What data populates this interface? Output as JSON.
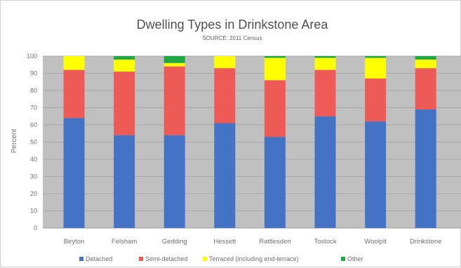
{
  "chart_data": {
    "type": "bar",
    "stacked": true,
    "title": "Dwelling Types in Drinkstone Area",
    "subtitle": "SOURCE: 2011 Census",
    "xlabel": "",
    "ylabel": "Percent",
    "ylim": [
      0,
      100
    ],
    "yticks": [
      "0",
      "10",
      "20",
      "30",
      "40",
      "50",
      "60",
      "70",
      "80",
      "90",
      "100"
    ],
    "grid": true,
    "legend_position": "bottom",
    "categories": [
      "Beyton",
      "Felsham",
      "Gedding",
      "Hessett",
      "Rattlesden",
      "Tostock",
      "Woolpit",
      "Drinkstone"
    ],
    "series": [
      {
        "name": "Detached",
        "color": "#4472c4",
        "values": [
          64,
          54,
          54,
          61,
          53,
          65,
          62,
          69
        ]
      },
      {
        "name": "Semi-detached",
        "color": "#ee5b57",
        "values": [
          28,
          37,
          40,
          32,
          33,
          27,
          25,
          24
        ]
      },
      {
        "name": "Terraced (including end-terrace)",
        "color": "#ffff00",
        "values": [
          8,
          7,
          2,
          7,
          13,
          7,
          12,
          5
        ]
      },
      {
        "name": "Other",
        "color": "#1fa845",
        "values": [
          0,
          2,
          4,
          0,
          1,
          1,
          1,
          2
        ]
      }
    ],
    "plot_background": "#c0c0c0"
  }
}
